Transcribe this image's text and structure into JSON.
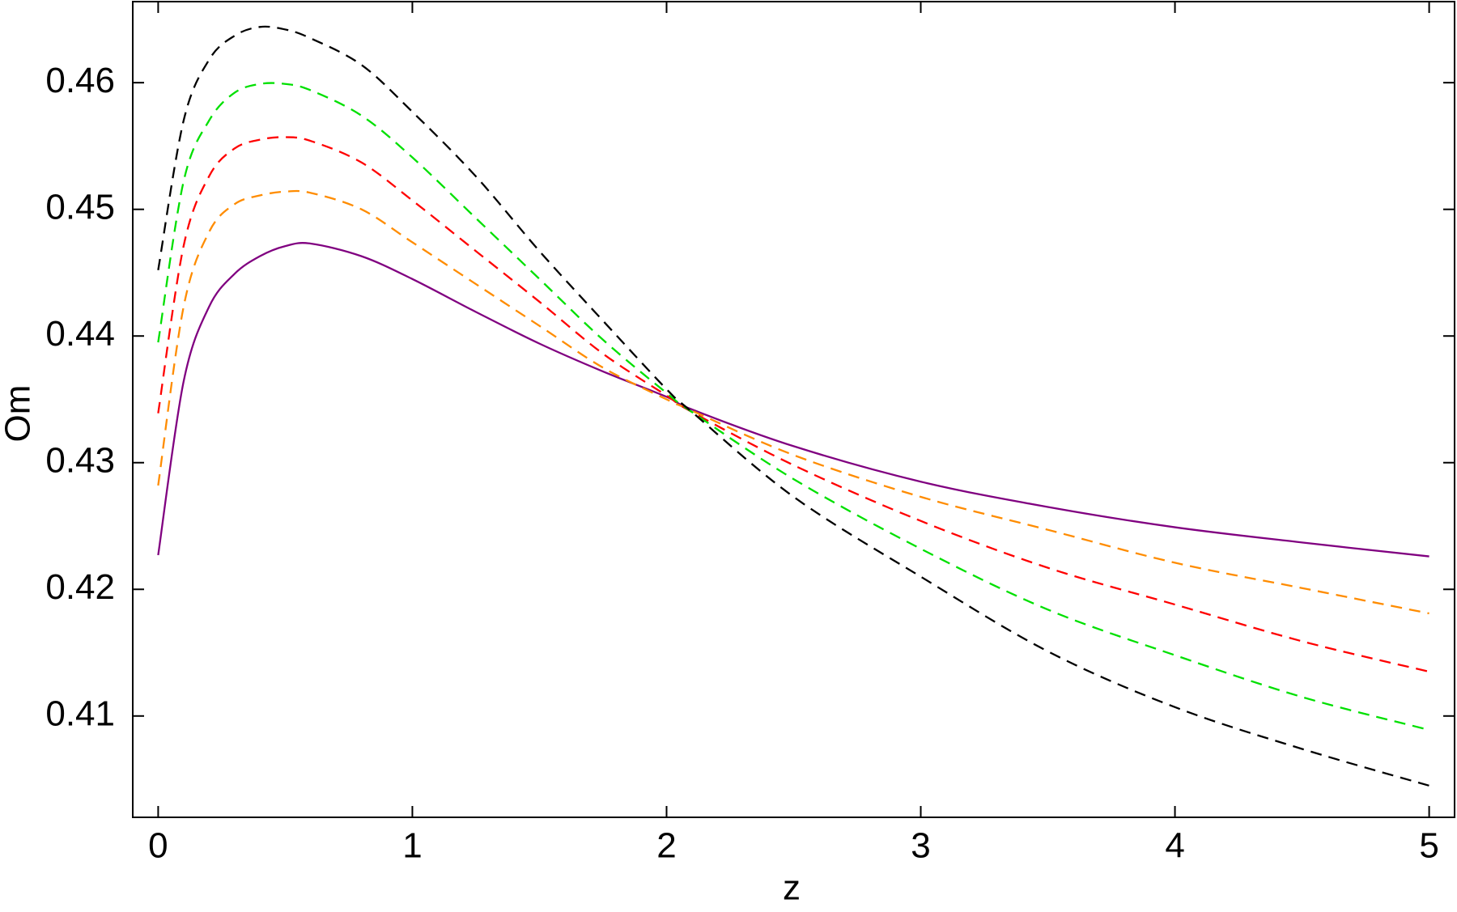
{
  "chart_data": {
    "type": "line",
    "xlabel": "z",
    "ylabel": "Om",
    "x": [
      0,
      0.1,
      0.2,
      0.3,
      0.4,
      0.5,
      0.6,
      0.8,
      1.0,
      1.25,
      1.5,
      1.75,
      2.0,
      2.1,
      2.5,
      3,
      3.5,
      4,
      4.5,
      5
    ],
    "series": [
      {
        "color": "#800080",
        "dashed": false,
        "values": [
          0.4227,
          0.4364,
          0.4423,
          0.4449,
          0.4463,
          0.4471,
          0.4473,
          0.4463,
          0.4445,
          0.4419,
          0.4394,
          0.4372,
          0.4352,
          0.4342,
          0.4313,
          0.4285,
          0.4265,
          0.4249,
          0.4237,
          0.4226
        ]
      },
      {
        "color": "#ff8c00",
        "dashed": true,
        "values": [
          0.4282,
          0.4423,
          0.4482,
          0.4504,
          0.4511,
          0.4514,
          0.4513,
          0.45,
          0.4474,
          0.4441,
          0.4408,
          0.4375,
          0.435,
          0.4341,
          0.4306,
          0.4273,
          0.4247,
          0.4221,
          0.4201,
          0.4181
        ]
      },
      {
        "color": "#ff0000",
        "dashed": true,
        "values": [
          0.4339,
          0.4471,
          0.4526,
          0.4548,
          0.4555,
          0.4557,
          0.4554,
          0.4537,
          0.4507,
          0.4467,
          0.4427,
          0.4386,
          0.4353,
          0.434,
          0.4298,
          0.4254,
          0.4217,
          0.4188,
          0.4159,
          0.4135
        ]
      },
      {
        "color": "#00e000",
        "dashed": true,
        "values": [
          0.4395,
          0.4522,
          0.457,
          0.4592,
          0.4599,
          0.4599,
          0.4594,
          0.4574,
          0.4541,
          0.4493,
          0.4445,
          0.4397,
          0.4355,
          0.434,
          0.4287,
          0.4232,
          0.4184,
          0.4148,
          0.4115,
          0.4089
        ]
      },
      {
        "color": "#000000",
        "dashed": true,
        "values": [
          0.4452,
          0.457,
          0.4618,
          0.4637,
          0.4644,
          0.4642,
          0.4635,
          0.4614,
          0.4577,
          0.4526,
          0.4467,
          0.4412,
          0.4358,
          0.434,
          0.4273,
          0.421,
          0.4151,
          0.4107,
          0.4074,
          0.4045
        ]
      }
    ],
    "xlim": [
      -0.1,
      5.1
    ],
    "xticks": [
      0,
      1,
      2,
      3,
      4,
      5
    ],
    "ylim": [
      0.402,
      0.4664
    ],
    "yticks": [
      0.41,
      0.42,
      0.43,
      0.44,
      0.45,
      0.46
    ],
    "grid": false
  }
}
